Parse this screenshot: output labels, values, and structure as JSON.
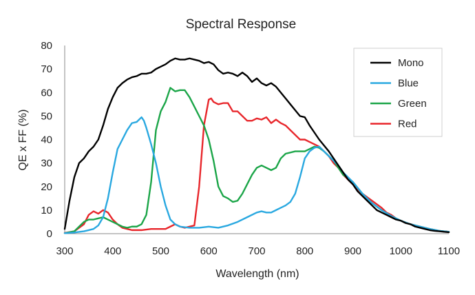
{
  "chart_data": {
    "type": "line",
    "title": "Spectral Response",
    "xlabel": "Wavelength (nm)",
    "ylabel": "QE x FF (%)",
    "xlim": [
      300,
      1100
    ],
    "ylim": [
      0,
      80
    ],
    "xticks": [
      300,
      400,
      500,
      600,
      700,
      800,
      900,
      1000,
      1100
    ],
    "yticks": [
      0,
      10,
      20,
      30,
      40,
      50,
      60,
      70,
      80
    ],
    "grid": false,
    "legend_position": "top-right",
    "series": [
      {
        "name": "Mono",
        "color": "#000000",
        "points": [
          [
            300,
            2
          ],
          [
            310,
            14
          ],
          [
            320,
            24
          ],
          [
            330,
            30
          ],
          [
            340,
            32
          ],
          [
            350,
            35
          ],
          [
            360,
            37
          ],
          [
            370,
            40
          ],
          [
            380,
            46
          ],
          [
            390,
            53
          ],
          [
            400,
            58
          ],
          [
            410,
            62
          ],
          [
            420,
            64
          ],
          [
            430,
            65.5
          ],
          [
            440,
            66.5
          ],
          [
            450,
            67
          ],
          [
            460,
            68
          ],
          [
            470,
            68
          ],
          [
            480,
            68.5
          ],
          [
            490,
            70
          ],
          [
            500,
            71
          ],
          [
            510,
            72
          ],
          [
            520,
            73.5
          ],
          [
            530,
            74.5
          ],
          [
            540,
            74
          ],
          [
            550,
            74
          ],
          [
            560,
            74.5
          ],
          [
            570,
            74
          ],
          [
            580,
            73.5
          ],
          [
            590,
            72.5
          ],
          [
            600,
            73
          ],
          [
            610,
            72
          ],
          [
            620,
            69.5
          ],
          [
            630,
            68
          ],
          [
            640,
            68.5
          ],
          [
            650,
            68
          ],
          [
            660,
            67
          ],
          [
            670,
            68.5
          ],
          [
            680,
            67
          ],
          [
            690,
            64.5
          ],
          [
            700,
            66
          ],
          [
            710,
            64
          ],
          [
            720,
            63
          ],
          [
            730,
            64
          ],
          [
            740,
            62.5
          ],
          [
            750,
            60
          ],
          [
            760,
            57.5
          ],
          [
            770,
            55
          ],
          [
            780,
            52.5
          ],
          [
            790,
            50
          ],
          [
            800,
            49.5
          ],
          [
            810,
            46
          ],
          [
            820,
            43
          ],
          [
            830,
            40
          ],
          [
            840,
            37.5
          ],
          [
            850,
            35
          ],
          [
            860,
            32
          ],
          [
            870,
            29
          ],
          [
            880,
            26
          ],
          [
            890,
            23
          ],
          [
            900,
            21
          ],
          [
            910,
            18
          ],
          [
            920,
            16
          ],
          [
            930,
            14
          ],
          [
            940,
            12
          ],
          [
            950,
            10
          ],
          [
            960,
            9
          ],
          [
            970,
            8
          ],
          [
            980,
            7
          ],
          [
            990,
            6
          ],
          [
            1000,
            5.5
          ],
          [
            1010,
            4.5
          ],
          [
            1020,
            4
          ],
          [
            1030,
            3
          ],
          [
            1040,
            2.5
          ],
          [
            1050,
            2
          ],
          [
            1060,
            1.5
          ],
          [
            1070,
            1.2
          ],
          [
            1080,
            1
          ],
          [
            1090,
            0.8
          ],
          [
            1100,
            0.6
          ]
        ]
      },
      {
        "name": "Blue",
        "color": "#29A8E0",
        "points": [
          [
            300,
            0.2
          ],
          [
            320,
            0.5
          ],
          [
            340,
            1
          ],
          [
            360,
            2
          ],
          [
            370,
            3.5
          ],
          [
            380,
            7
          ],
          [
            390,
            15
          ],
          [
            400,
            26
          ],
          [
            410,
            36
          ],
          [
            420,
            40
          ],
          [
            430,
            44
          ],
          [
            440,
            47
          ],
          [
            450,
            47.5
          ],
          [
            460,
            49.5
          ],
          [
            465,
            48
          ],
          [
            470,
            45
          ],
          [
            480,
            38
          ],
          [
            490,
            30
          ],
          [
            500,
            20
          ],
          [
            510,
            12
          ],
          [
            520,
            6
          ],
          [
            530,
            4
          ],
          [
            540,
            3
          ],
          [
            560,
            2.5
          ],
          [
            580,
            2.5
          ],
          [
            600,
            3
          ],
          [
            620,
            2.5
          ],
          [
            640,
            3.5
          ],
          [
            660,
            5
          ],
          [
            680,
            7
          ],
          [
            700,
            9
          ],
          [
            710,
            9.5
          ],
          [
            720,
            9
          ],
          [
            730,
            9
          ],
          [
            740,
            10
          ],
          [
            750,
            11
          ],
          [
            760,
            12
          ],
          [
            770,
            13.5
          ],
          [
            780,
            17
          ],
          [
            790,
            24
          ],
          [
            800,
            32
          ],
          [
            810,
            35
          ],
          [
            820,
            36.5
          ],
          [
            830,
            37
          ],
          [
            840,
            35
          ],
          [
            850,
            33
          ],
          [
            860,
            31
          ],
          [
            870,
            29
          ],
          [
            880,
            26
          ],
          [
            890,
            24
          ],
          [
            900,
            22
          ],
          [
            920,
            17
          ],
          [
            940,
            13
          ],
          [
            960,
            10
          ],
          [
            980,
            7.5
          ],
          [
            1000,
            5.5
          ],
          [
            1020,
            4
          ],
          [
            1040,
            3
          ],
          [
            1060,
            2
          ],
          [
            1080,
            1.2
          ],
          [
            1100,
            0.8
          ]
        ]
      },
      {
        "name": "Green",
        "color": "#1BA548",
        "points": [
          [
            300,
            0.2
          ],
          [
            320,
            1
          ],
          [
            330,
            3
          ],
          [
            340,
            5
          ],
          [
            350,
            6
          ],
          [
            360,
            6
          ],
          [
            370,
            6.5
          ],
          [
            380,
            7
          ],
          [
            390,
            6
          ],
          [
            400,
            5
          ],
          [
            410,
            4
          ],
          [
            420,
            3
          ],
          [
            430,
            2.5
          ],
          [
            440,
            3
          ],
          [
            450,
            3
          ],
          [
            460,
            4
          ],
          [
            470,
            8
          ],
          [
            480,
            22
          ],
          [
            490,
            44
          ],
          [
            500,
            52
          ],
          [
            510,
            56
          ],
          [
            520,
            62
          ],
          [
            530,
            60.5
          ],
          [
            540,
            61
          ],
          [
            550,
            61
          ],
          [
            560,
            58
          ],
          [
            570,
            54
          ],
          [
            580,
            50
          ],
          [
            590,
            46
          ],
          [
            600,
            40
          ],
          [
            610,
            31
          ],
          [
            620,
            20
          ],
          [
            630,
            16
          ],
          [
            640,
            15
          ],
          [
            650,
            13.5
          ],
          [
            660,
            14
          ],
          [
            670,
            17
          ],
          [
            680,
            21
          ],
          [
            690,
            25
          ],
          [
            700,
            28
          ],
          [
            710,
            29
          ],
          [
            720,
            28
          ],
          [
            730,
            27
          ],
          [
            740,
            28
          ],
          [
            750,
            32
          ],
          [
            760,
            34
          ],
          [
            780,
            35
          ],
          [
            800,
            35
          ],
          [
            810,
            36
          ],
          [
            820,
            37
          ],
          [
            830,
            36.5
          ],
          [
            840,
            35
          ],
          [
            850,
            33
          ],
          [
            860,
            31
          ],
          [
            870,
            28
          ],
          [
            880,
            25
          ],
          [
            900,
            22
          ],
          [
            920,
            17
          ],
          [
            940,
            13
          ],
          [
            960,
            10
          ],
          [
            980,
            7.5
          ],
          [
            1000,
            5.5
          ],
          [
            1020,
            4
          ],
          [
            1040,
            3
          ],
          [
            1060,
            2
          ],
          [
            1080,
            1.2
          ],
          [
            1100,
            0.8
          ]
        ]
      },
      {
        "name": "Red",
        "color": "#E8262B",
        "points": [
          [
            300,
            0.3
          ],
          [
            320,
            1
          ],
          [
            340,
            4
          ],
          [
            350,
            8
          ],
          [
            360,
            9.5
          ],
          [
            370,
            8.5
          ],
          [
            380,
            10
          ],
          [
            390,
            9
          ],
          [
            400,
            6
          ],
          [
            410,
            4
          ],
          [
            420,
            2.5
          ],
          [
            430,
            2
          ],
          [
            440,
            1.5
          ],
          [
            460,
            1.5
          ],
          [
            480,
            2
          ],
          [
            500,
            2
          ],
          [
            510,
            2
          ],
          [
            520,
            3
          ],
          [
            530,
            4
          ],
          [
            540,
            3
          ],
          [
            550,
            2.5
          ],
          [
            560,
            3
          ],
          [
            570,
            3.5
          ],
          [
            580,
            20
          ],
          [
            590,
            46
          ],
          [
            600,
            57
          ],
          [
            605,
            57.5
          ],
          [
            610,
            56
          ],
          [
            620,
            55
          ],
          [
            630,
            55.5
          ],
          [
            640,
            55.5
          ],
          [
            650,
            52
          ],
          [
            660,
            52
          ],
          [
            670,
            50
          ],
          [
            680,
            48
          ],
          [
            690,
            48
          ],
          [
            700,
            49
          ],
          [
            710,
            48.5
          ],
          [
            720,
            49.5
          ],
          [
            730,
            47
          ],
          [
            740,
            48.5
          ],
          [
            750,
            47
          ],
          [
            760,
            46
          ],
          [
            770,
            44
          ],
          [
            780,
            42
          ],
          [
            790,
            40
          ],
          [
            800,
            40
          ],
          [
            810,
            39
          ],
          [
            820,
            38
          ],
          [
            830,
            37
          ],
          [
            840,
            35
          ],
          [
            850,
            33
          ],
          [
            860,
            30
          ],
          [
            870,
            28
          ],
          [
            880,
            25
          ],
          [
            890,
            23
          ],
          [
            900,
            21
          ],
          [
            910,
            19
          ],
          [
            920,
            17
          ],
          [
            930,
            15.5
          ],
          [
            940,
            14
          ],
          [
            950,
            12.5
          ],
          [
            960,
            11
          ],
          [
            970,
            9
          ],
          [
            980,
            8
          ],
          [
            990,
            6.5
          ],
          [
            1000,
            5.5
          ],
          [
            1020,
            4
          ],
          [
            1040,
            3
          ],
          [
            1060,
            2
          ],
          [
            1080,
            1.2
          ],
          [
            1100,
            0.8
          ]
        ]
      }
    ]
  }
}
